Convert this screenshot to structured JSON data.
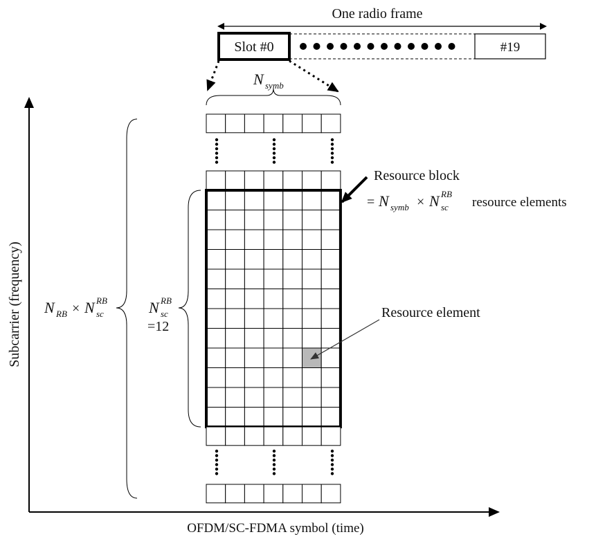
{
  "frame": {
    "title": "One radio frame",
    "first_slot": "Slot #0",
    "last_slot": "#19"
  },
  "axes": {
    "y_label": "Subcarrier (frequency)",
    "x_label": "OFDM/SC-FDMA symbol (time)"
  },
  "labels": {
    "n_symb_main": "N",
    "n_symb_sub": "symb",
    "n_rb": "N",
    "n_rb_sub": "RB",
    "times": "×",
    "n_sc": "N",
    "n_sc_sub": "sc",
    "n_sc_sup": "RB",
    "equals_12": "=12",
    "resource_block": "Resource block",
    "rb_formula_prefix": "=",
    "rb_formula_suffix": "resource elements",
    "resource_element": "Resource element"
  },
  "grid": {
    "columns": 7,
    "rows_in_block": 12
  },
  "colors": {
    "line": "#000000",
    "highlight": "#b8b8b8"
  }
}
